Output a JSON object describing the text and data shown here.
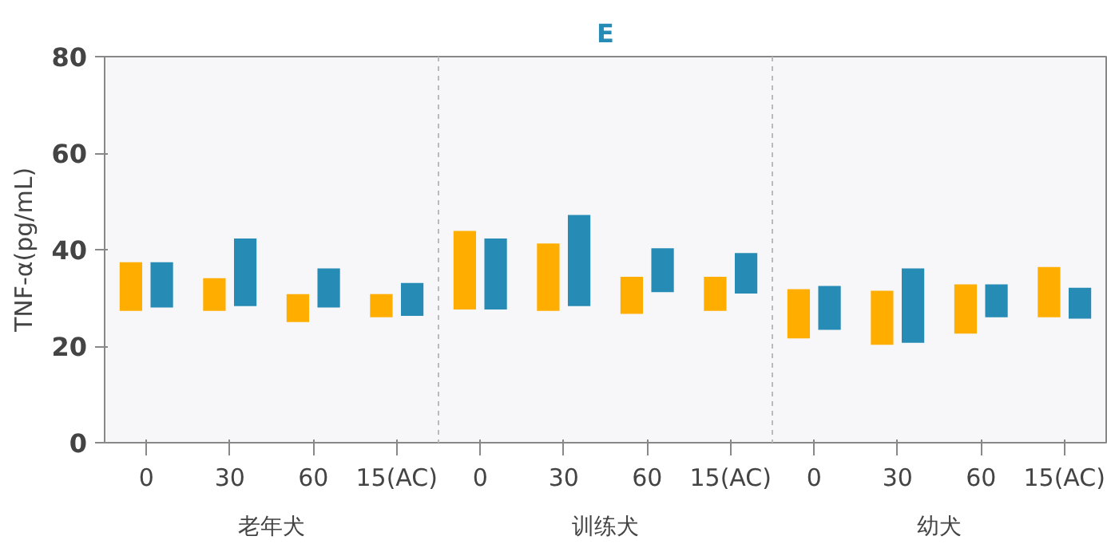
{
  "chart_data": {
    "type": "bar",
    "title": "E",
    "ylabel": "TNF-α(pg/mL)",
    "categories": [
      "0",
      "30",
      "60",
      "15(AC)",
      "0",
      "30",
      "60",
      "15(AC)",
      "0",
      "30",
      "60",
      "15(AC)"
    ],
    "annotations": [
      "老年犬",
      "训练犬",
      "幼犬"
    ],
    "series": [
      {
        "color": "#ffae00",
        "base": [
          27.3,
          27.3,
          25.0,
          26.0,
          27.6,
          27.3,
          26.7,
          27.3,
          21.6,
          20.3,
          22.6,
          26.0
        ],
        "values": [
          10.1,
          6.8,
          5.8,
          4.8,
          16.3,
          14.0,
          7.7,
          7.1,
          10.2,
          11.2,
          10.2,
          10.4
        ]
      },
      {
        "color": "#268bb5",
        "base": [
          28.0,
          28.3,
          28.0,
          26.3,
          27.6,
          28.3,
          31.2,
          30.9,
          23.4,
          20.7,
          26.0,
          25.7
        ],
        "values": [
          9.4,
          14.0,
          8.1,
          6.8,
          14.7,
          18.9,
          9.1,
          8.4,
          9.1,
          15.4,
          6.8,
          6.4
        ]
      }
    ],
    "ylim": [
      0,
      80
    ],
    "yticks": [
      0,
      20,
      40,
      60,
      80
    ],
    "grid": false
  }
}
